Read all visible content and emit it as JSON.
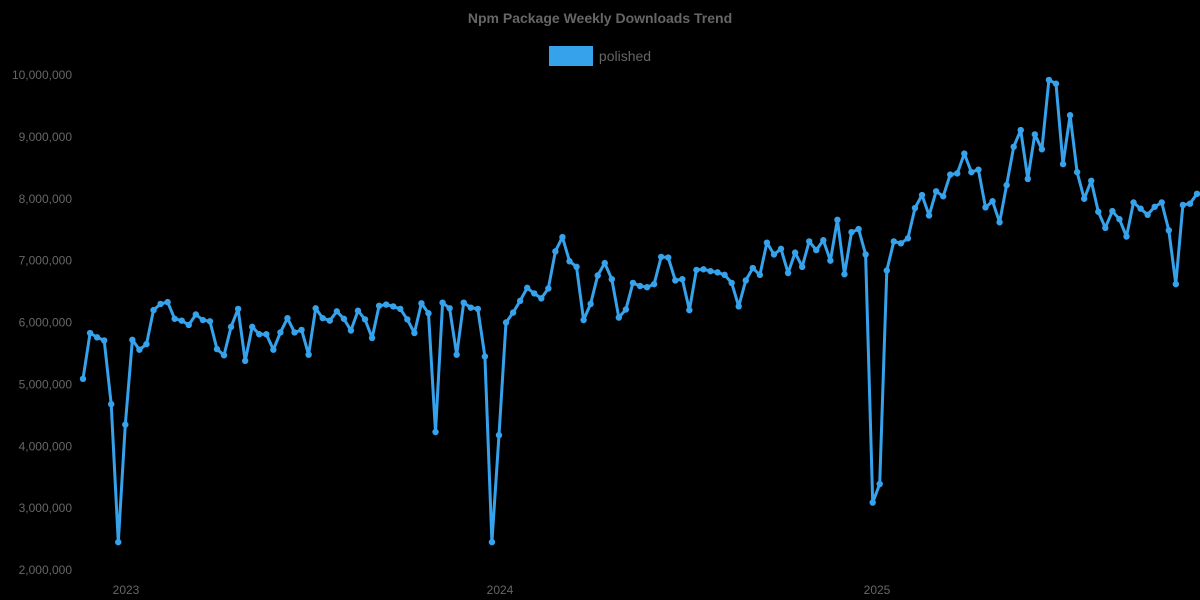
{
  "chart_data": {
    "type": "line",
    "title": "Npm Package Weekly Downloads Trend",
    "xlabel": "",
    "ylabel": "",
    "ylim": [
      2000000,
      10000000
    ],
    "grid": false,
    "legend_position": "top",
    "y_ticks": [
      "2,000,000",
      "3,000,000",
      "4,000,000",
      "5,000,000",
      "6,000,000",
      "7,000,000",
      "8,000,000",
      "9,000,000",
      "10,000,000"
    ],
    "x_ticks": [
      "2023",
      "2024",
      "2025"
    ],
    "series": [
      {
        "name": "polished",
        "color": "#36a2eb",
        "values": [
          5090000,
          5830000,
          5760000,
          5710000,
          4680000,
          2450000,
          4350000,
          5720000,
          5560000,
          5650000,
          6200000,
          6300000,
          6330000,
          6060000,
          6030000,
          5960000,
          6130000,
          6040000,
          6020000,
          5570000,
          5470000,
          5930000,
          6220000,
          5380000,
          5930000,
          5810000,
          5810000,
          5560000,
          5840000,
          6070000,
          5840000,
          5880000,
          5480000,
          6230000,
          6070000,
          6030000,
          6180000,
          6060000,
          5870000,
          6190000,
          6050000,
          5750000,
          6270000,
          6290000,
          6260000,
          6220000,
          6050000,
          5830000,
          6310000,
          6150000,
          4230000,
          6320000,
          6230000,
          5480000,
          6320000,
          6240000,
          6220000,
          5450000,
          2450000,
          4180000,
          6000000,
          6160000,
          6350000,
          6560000,
          6470000,
          6390000,
          6550000,
          7150000,
          7380000,
          6990000,
          6900000,
          6040000,
          6300000,
          6760000,
          6960000,
          6700000,
          6080000,
          6210000,
          6640000,
          6590000,
          6570000,
          6620000,
          7060000,
          7050000,
          6680000,
          6700000,
          6200000,
          6850000,
          6860000,
          6830000,
          6810000,
          6770000,
          6640000,
          6260000,
          6680000,
          6880000,
          6770000,
          7290000,
          7100000,
          7190000,
          6800000,
          7130000,
          6900000,
          7310000,
          7170000,
          7330000,
          7000000,
          7660000,
          6780000,
          7460000,
          7510000,
          7100000,
          3090000,
          3390000,
          6840000,
          7310000,
          7280000,
          7360000,
          7850000,
          8060000,
          7730000,
          8120000,
          8040000,
          8390000,
          8410000,
          8730000,
          8430000,
          8470000,
          7860000,
          7960000,
          7620000,
          8220000,
          8840000,
          9110000,
          8320000,
          9040000,
          8800000,
          9920000,
          9860000,
          8560000,
          9350000,
          8430000,
          8000000,
          8290000,
          7790000,
          7530000,
          7800000,
          7670000,
          7390000,
          7940000,
          7840000,
          7740000,
          7870000,
          7940000,
          7490000,
          6620000,
          7900000,
          7920000,
          8080000
        ]
      }
    ]
  },
  "legend": {
    "label": "polished",
    "color": "#36a2eb"
  }
}
